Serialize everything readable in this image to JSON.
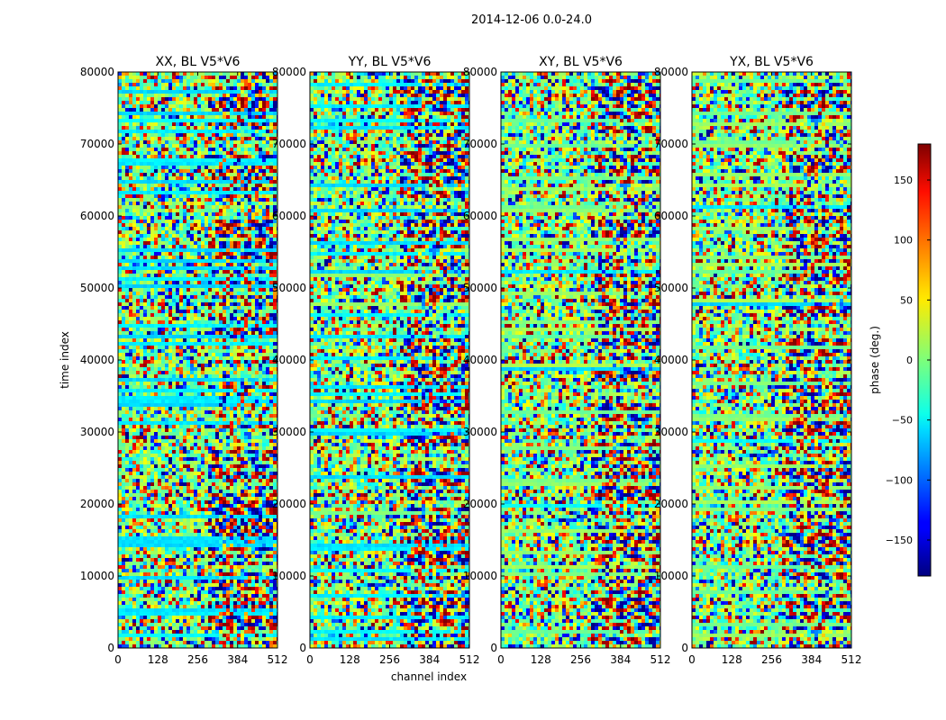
{
  "chart_data": {
    "type": "heatmap",
    "suptitle": "2014-12-06 0.0-24.0",
    "xlabel": "channel index",
    "ylabel": "time index",
    "xlim": [
      0,
      512
    ],
    "ylim": [
      0,
      80000
    ],
    "xticks": [
      0,
      128,
      256,
      384,
      512
    ],
    "yticks": [
      0,
      10000,
      20000,
      30000,
      40000,
      50000,
      60000,
      70000,
      80000
    ],
    "panels": [
      {
        "title": "XX, BL V5*V6",
        "cyan_bias": 1.0
      },
      {
        "title": "YY, BL V5*V6",
        "cyan_bias": 0.8
      },
      {
        "title": "XY, BL V5*V6",
        "cyan_bias": 0.15
      },
      {
        "title": "YX, BL V5*V6",
        "cyan_bias": 0.15
      }
    ],
    "colorbar": {
      "label": "phase (deg.)",
      "range": [
        -180,
        180
      ],
      "ticks": [
        -150,
        -100,
        -50,
        0,
        50,
        100,
        150
      ],
      "colormap": "jet"
    }
  }
}
